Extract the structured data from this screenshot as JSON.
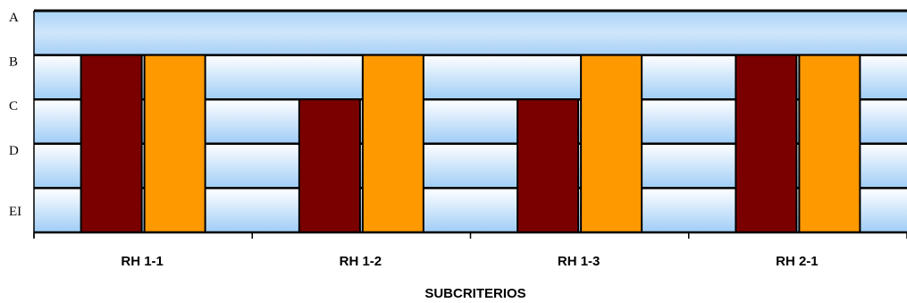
{
  "chart_data": {
    "type": "bar",
    "categories": [
      "RH 1-1",
      "RH 1-2",
      "RH 1-3",
      "RH 2-1"
    ],
    "y_levels": [
      "A",
      "B",
      "C",
      "D",
      "EI"
    ],
    "xlabel": "SUBCRITERIOS",
    "ylabel": "",
    "series": [
      {
        "values": [
          "B",
          "C",
          "C",
          "B"
        ],
        "color": "#7a0000"
      },
      {
        "values": [
          "B",
          "B",
          "B",
          "B"
        ],
        "color": "#ff9900"
      }
    ],
    "grid": true,
    "background": "blue-gradient-bands"
  }
}
